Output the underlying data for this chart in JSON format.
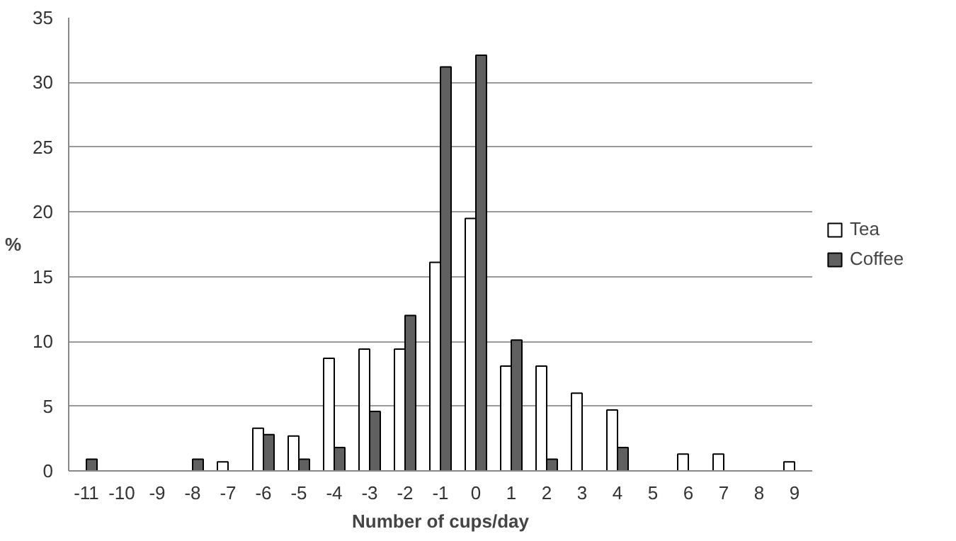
{
  "chart_data": {
    "type": "bar",
    "xlabel": "Number of cups/day",
    "ylabel": "%",
    "categories": [
      "-11",
      "-10",
      "-9",
      "-8",
      "-7",
      "-6",
      "-5",
      "-4",
      "-3",
      "-2",
      "-1",
      "0",
      "1",
      "2",
      "3",
      "4",
      "5",
      "6",
      "7",
      "8",
      "9"
    ],
    "series": [
      {
        "name": "Tea",
        "color": "#ffffff",
        "values": [
          0,
          0,
          0,
          0,
          0.7,
          3.3,
          2.7,
          8.7,
          9.4,
          9.4,
          16.1,
          19.5,
          8.1,
          8.1,
          6.0,
          4.7,
          0,
          1.3,
          1.3,
          0,
          0.7
        ]
      },
      {
        "name": "Coffee",
        "color": "#606060",
        "values": [
          0.9,
          0,
          0,
          0.9,
          0,
          2.8,
          0.9,
          1.8,
          4.6,
          12.0,
          31.2,
          32.1,
          10.1,
          0.9,
          0,
          1.8,
          0,
          0,
          0,
          0,
          0
        ]
      }
    ],
    "ylim": [
      0,
      35
    ],
    "yticks": [
      0,
      5,
      10,
      15,
      20,
      25,
      30,
      35
    ],
    "grid": "y",
    "legend": "right"
  }
}
